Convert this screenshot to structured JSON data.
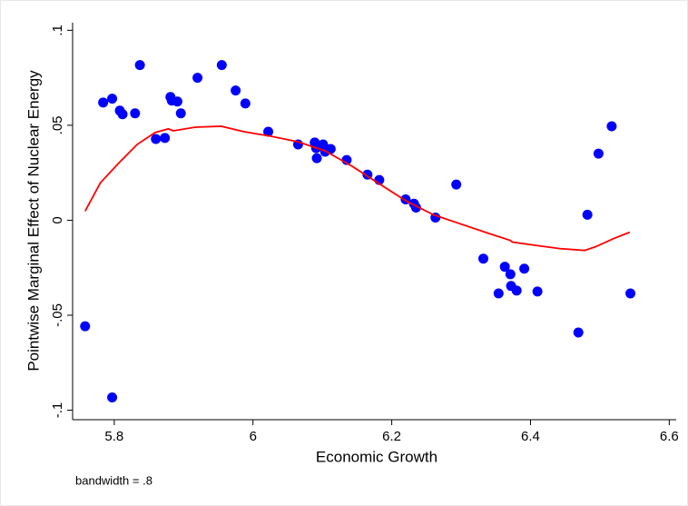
{
  "chart_data": {
    "type": "scatter",
    "xlabel": "Economic Growth",
    "ylabel": "Pointwise Marginal Effect of Nuclear Energy",
    "note": "bandwidth = .8",
    "xlim": [
      5.74,
      6.61
    ],
    "ylim": [
      -0.105,
      0.104
    ],
    "xticks": [
      5.8,
      6,
      6.2,
      6.4,
      6.6
    ],
    "yticks": [
      {
        "value": -0.1,
        "label": "-.1"
      },
      {
        "value": -0.05,
        "label": "-.05"
      },
      0,
      {
        "value": 0.05,
        "label": ".05"
      },
      {
        "value": 0.1,
        "label": ".1"
      }
    ],
    "series": [
      {
        "type": "scatter",
        "color": "#0000ff",
        "x": [
          5.758,
          5.784,
          5.797,
          5.797,
          5.808,
          5.812,
          5.83,
          5.837,
          5.86,
          5.873,
          5.881,
          5.883,
          5.891,
          5.896,
          5.92,
          5.955,
          5.975,
          5.989,
          6.022,
          6.065,
          6.089,
          6.091,
          6.092,
          6.101,
          6.104,
          6.112,
          6.135,
          6.165,
          6.182,
          6.22,
          6.232,
          6.235,
          6.263,
          6.293,
          6.332,
          6.371,
          6.372,
          6.354,
          6.363,
          6.38,
          6.391,
          6.41,
          6.469,
          6.482,
          6.498,
          6.517,
          6.544
        ],
        "values": [
          -0.0558,
          0.062,
          0.064,
          -0.0933,
          0.0577,
          0.0558,
          0.0563,
          0.0817,
          0.0428,
          0.0433,
          0.0649,
          0.063,
          0.0625,
          0.0563,
          0.075,
          0.0817,
          0.0683,
          0.0615,
          0.0466,
          0.0399,
          0.0409,
          0.038,
          0.0327,
          0.0399,
          0.0361,
          0.0375,
          0.0317,
          0.024,
          0.0212,
          0.011,
          0.0087,
          0.0067,
          0.0014,
          0.0188,
          -0.0202,
          -0.0284,
          -0.0346,
          -0.0385,
          -0.0245,
          -0.037,
          -0.0255,
          -0.0375,
          -0.0591,
          0.0029,
          0.0351,
          0.0495,
          -0.0385
        ]
      },
      {
        "type": "line",
        "color": "#ff0000",
        "x": [
          5.758,
          5.78,
          5.807,
          5.833,
          5.859,
          5.878,
          5.885,
          5.917,
          5.954,
          5.987,
          6.026,
          6.065,
          6.104,
          6.143,
          6.182,
          6.221,
          6.26,
          6.299,
          6.338,
          6.371,
          6.374,
          6.403,
          6.442,
          6.478,
          6.494,
          6.52,
          6.543
        ],
        "values": [
          0.0048,
          0.0197,
          0.0303,
          0.0399,
          0.0462,
          0.0481,
          0.0471,
          0.049,
          0.0495,
          0.0466,
          0.0442,
          0.0413,
          0.0365,
          0.0284,
          0.0192,
          0.0101,
          0.0029,
          -0.0019,
          -0.0067,
          -0.0106,
          -0.0115,
          -0.013,
          -0.0149,
          -0.0159,
          -0.0139,
          -0.0096,
          -0.0063
        ]
      }
    ]
  }
}
